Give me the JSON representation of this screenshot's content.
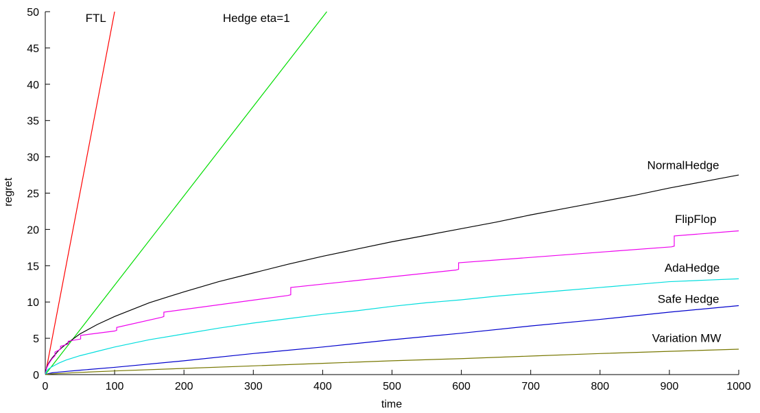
{
  "chart_data": {
    "type": "line",
    "xlabel": "time",
    "ylabel": "regret",
    "xlim": [
      0,
      1000
    ],
    "ylim": [
      0,
      50
    ],
    "xticks": [
      0,
      100,
      200,
      300,
      400,
      500,
      600,
      700,
      800,
      900,
      1000
    ],
    "yticks": [
      0,
      5,
      10,
      15,
      20,
      25,
      30,
      35,
      40,
      45,
      50
    ],
    "grid": false,
    "legend": "none",
    "series": [
      {
        "name": "FTL",
        "color": "#ff0000",
        "x": [
          0,
          100
        ],
        "y": [
          0,
          50
        ]
      },
      {
        "name": "Hedge eta=1",
        "color": "#00dd00",
        "x": [
          0,
          406
        ],
        "y": [
          0,
          50
        ]
      },
      {
        "name": "NormalHedge",
        "color": "#000000",
        "x": [
          0,
          2,
          5,
          10,
          20,
          30,
          50,
          75,
          100,
          150,
          200,
          250,
          300,
          350,
          400,
          450,
          500,
          550,
          600,
          650,
          700,
          750,
          800,
          850,
          900,
          950,
          1000
        ],
        "y": [
          0,
          1.0,
          1.6,
          2.3,
          3.4,
          4.2,
          5.6,
          6.9,
          8.0,
          9.9,
          11.4,
          12.8,
          14.0,
          15.2,
          16.3,
          17.3,
          18.3,
          19.2,
          20.1,
          21.0,
          22.0,
          22.9,
          23.8,
          24.7,
          25.7,
          26.6,
          27.5
        ]
      },
      {
        "name": "FlipFlop",
        "color": "#ee00ee",
        "x": [
          0,
          2,
          5,
          10,
          14,
          14,
          22,
          22,
          33,
          33,
          51,
          51,
          100,
          103,
          103,
          168,
          171,
          171,
          350,
          354,
          354,
          592,
          596,
          596,
          903,
          907,
          907,
          1000
        ],
        "y": [
          0,
          0.9,
          1.5,
          2.2,
          2.6,
          3.1,
          3.5,
          3.9,
          4.2,
          4.6,
          4.9,
          5.4,
          6.0,
          6.1,
          6.5,
          7.9,
          8.0,
          8.6,
          10.9,
          11.0,
          12.0,
          14.4,
          14.5,
          15.4,
          17.6,
          17.7,
          19.1,
          19.8
        ]
      },
      {
        "name": "AdaHedge",
        "color": "#00dddd",
        "x": [
          0,
          2,
          5,
          10,
          20,
          30,
          50,
          75,
          100,
          150,
          200,
          250,
          300,
          350,
          400,
          450,
          500,
          550,
          600,
          650,
          700,
          750,
          800,
          850,
          900,
          950,
          1000
        ],
        "y": [
          0,
          0.5,
          0.8,
          1.1,
          1.6,
          2.0,
          2.6,
          3.2,
          3.8,
          4.8,
          5.6,
          6.4,
          7.1,
          7.7,
          8.3,
          8.8,
          9.4,
          9.9,
          10.3,
          10.8,
          11.2,
          11.6,
          12.0,
          12.4,
          12.8,
          13.0,
          13.2
        ]
      },
      {
        "name": "Safe Hedge",
        "color": "#0000cc",
        "x": [
          0,
          5,
          10,
          20,
          50,
          100,
          200,
          300,
          400,
          500,
          600,
          700,
          800,
          900,
          1000
        ],
        "y": [
          0,
          0.15,
          0.25,
          0.35,
          0.6,
          1.0,
          1.9,
          2.9,
          3.8,
          4.8,
          5.7,
          6.7,
          7.6,
          8.6,
          9.5
        ]
      },
      {
        "name": "Variation MW",
        "color": "#777700",
        "x": [
          0,
          10,
          50,
          100,
          200,
          300,
          400,
          500,
          600,
          700,
          800,
          900,
          1000
        ],
        "y": [
          0,
          0.1,
          0.3,
          0.5,
          0.85,
          1.2,
          1.55,
          1.9,
          2.2,
          2.55,
          2.9,
          3.2,
          3.5
        ]
      }
    ],
    "annotations": [
      {
        "text": "FTL",
        "x": 58,
        "y": 48.6
      },
      {
        "text": "Hedge eta=1",
        "x": 256,
        "y": 48.6
      },
      {
        "text": "NormalHedge",
        "x": 868,
        "y": 28.3
      },
      {
        "text": "FlipFlop",
        "x": 908,
        "y": 20.9
      },
      {
        "text": "AdaHedge",
        "x": 893,
        "y": 14.2
      },
      {
        "text": "Safe Hedge",
        "x": 883,
        "y": 9.9
      },
      {
        "text": "Variation MW",
        "x": 875,
        "y": 4.5
      }
    ]
  }
}
